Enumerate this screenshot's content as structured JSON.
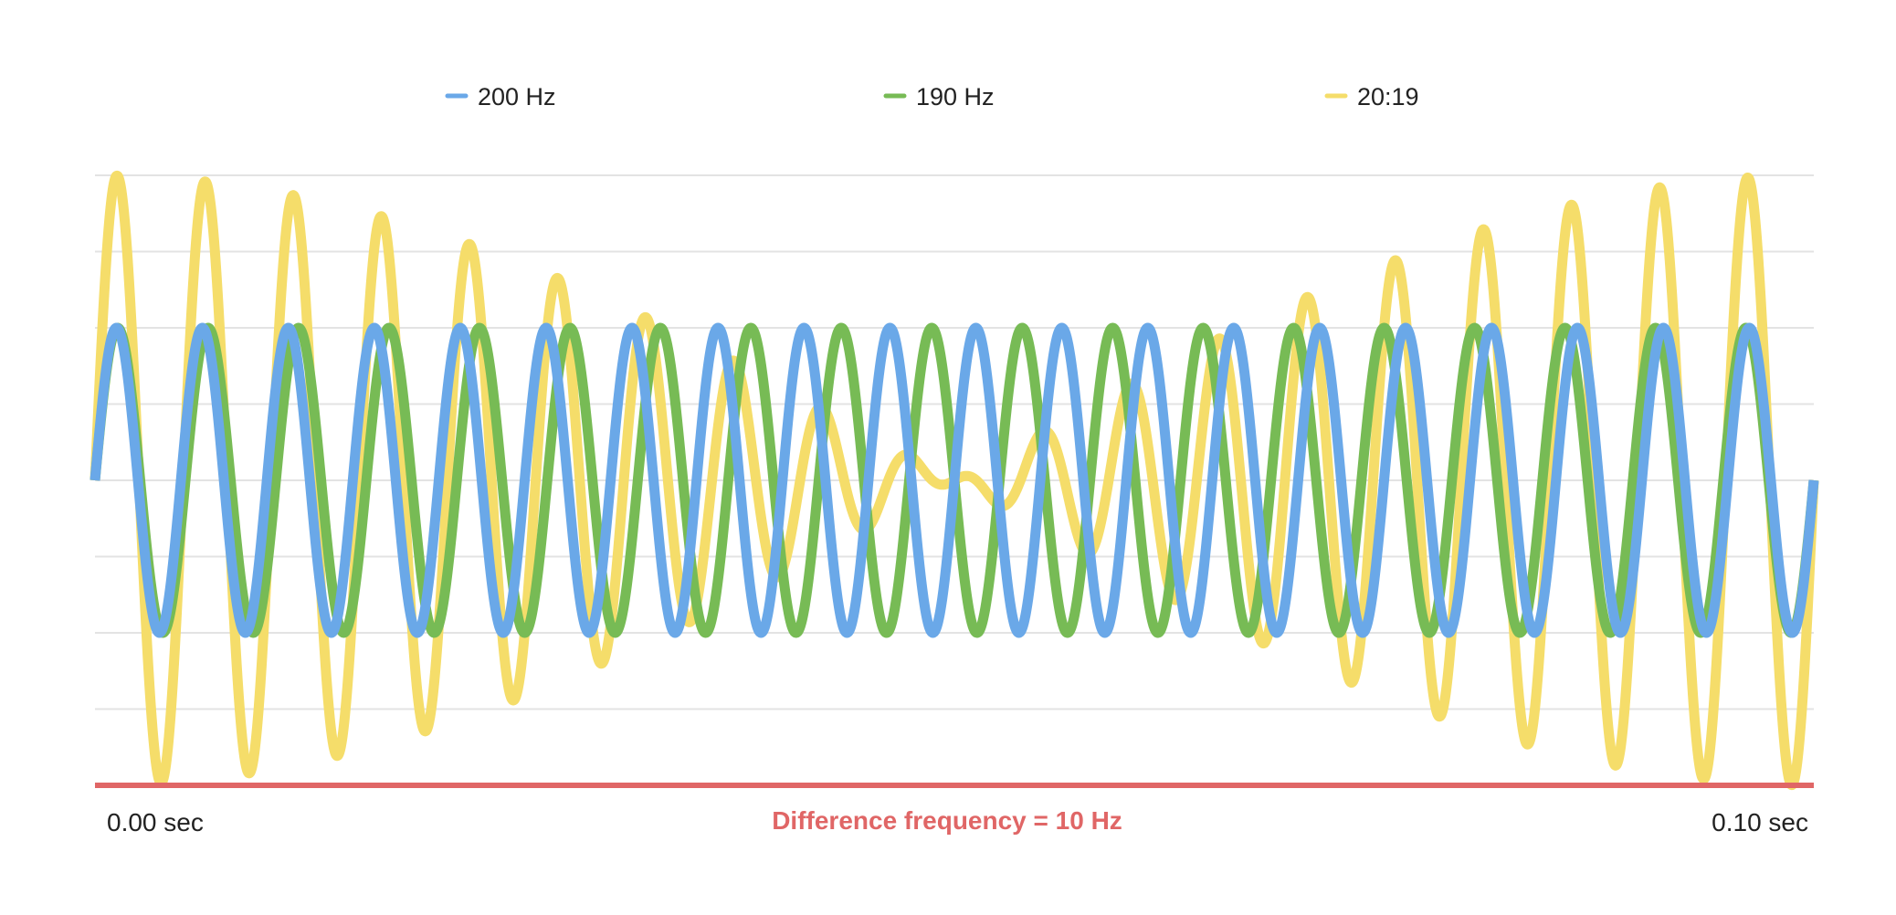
{
  "chart_data": {
    "type": "line",
    "x_unit": "sec",
    "xlim": [
      0,
      0.1
    ],
    "ylim": [
      -2,
      2
    ],
    "grid": true,
    "legend_position": "top",
    "x_tick_labels": [
      {
        "x": 0.0,
        "label": "0.00 sec"
      },
      {
        "x": 0.1,
        "label": "0.10 sec"
      }
    ],
    "annotation": {
      "text": "Difference frequency = 10 Hz",
      "color": "#e06666"
    },
    "baseline_color": "#e06666",
    "series": [
      {
        "name": "200 Hz",
        "color": "#6aa8e8",
        "frequency_hz": 200,
        "amplitude": 1,
        "formula": "sin(2*pi*200*t)"
      },
      {
        "name": "190 Hz",
        "color": "#77bb55",
        "frequency_hz": 190,
        "amplitude": 1,
        "formula": "sin(2*pi*190*t)"
      },
      {
        "name": "20:19",
        "color": "#f5dd6a",
        "amplitude": 2,
        "formula": "sin(2*pi*200*t) + sin(2*pi*190*t)"
      }
    ],
    "draw_order": [
      "20:19",
      "190 Hz",
      "200 Hz"
    ]
  }
}
